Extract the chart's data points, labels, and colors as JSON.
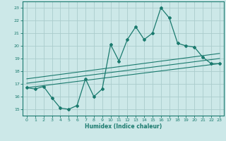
{
  "title": "",
  "xlabel": "Humidex (Indice chaleur)",
  "bg_color": "#cce8e8",
  "grid_color": "#aacccc",
  "line_color": "#1a7a6e",
  "xlim": [
    -0.5,
    23.5
  ],
  "ylim": [
    14.5,
    23.5
  ],
  "xticks": [
    0,
    1,
    2,
    3,
    4,
    5,
    6,
    7,
    8,
    9,
    10,
    11,
    12,
    13,
    14,
    15,
    16,
    17,
    18,
    19,
    20,
    21,
    22,
    23
  ],
  "yticks": [
    15,
    16,
    17,
    18,
    19,
    20,
    21,
    22,
    23
  ],
  "main_x": [
    0,
    1,
    2,
    3,
    4,
    5,
    6,
    7,
    8,
    9,
    10,
    11,
    12,
    13,
    14,
    15,
    16,
    17,
    18,
    19,
    20,
    21,
    22,
    23
  ],
  "main_y": [
    16.7,
    16.6,
    16.8,
    15.9,
    15.1,
    15.0,
    15.3,
    17.4,
    16.0,
    16.6,
    20.1,
    18.8,
    20.5,
    21.5,
    20.5,
    21.0,
    23.0,
    22.2,
    20.2,
    20.0,
    19.9,
    19.1,
    18.6,
    18.6
  ],
  "line1_x": [
    0,
    23
  ],
  "line1_y": [
    16.7,
    18.6
  ],
  "line2_x": [
    0,
    23
  ],
  "line2_y": [
    17.05,
    19.0
  ],
  "line3_x": [
    0,
    23
  ],
  "line3_y": [
    17.4,
    19.4
  ]
}
